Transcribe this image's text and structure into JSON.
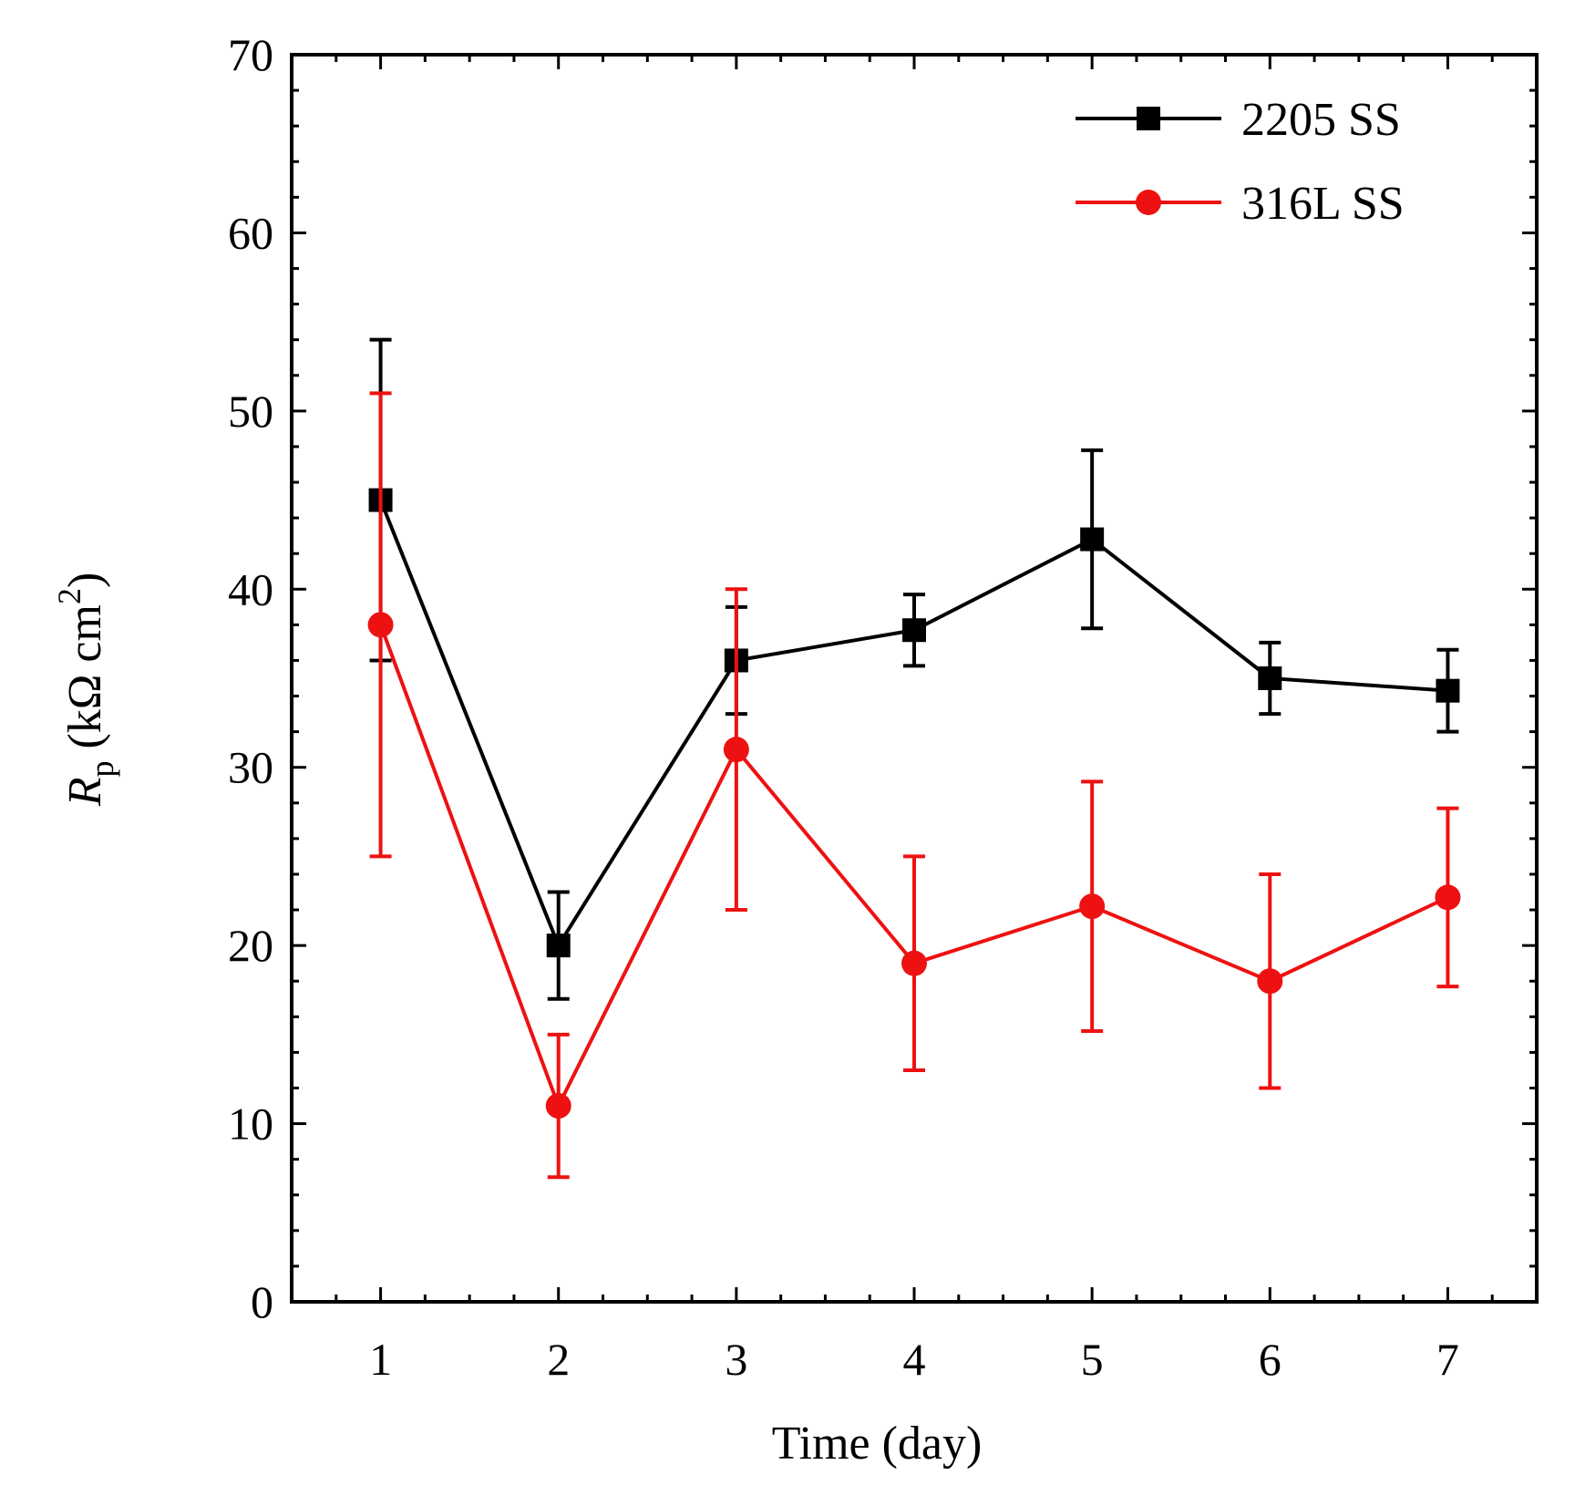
{
  "chart_data": {
    "type": "line",
    "title": "",
    "xlabel": "Time (day)",
    "ylabel": {
      "symbol": "R",
      "subscript": "p",
      "unit_prefix": " (kΩ cm",
      "unit_power": "2",
      "unit_suffix": ")"
    },
    "x": [
      1,
      2,
      3,
      4,
      5,
      6,
      7
    ],
    "xlim": [
      0.5,
      7.5
    ],
    "ylim": [
      0,
      70
    ],
    "x_ticks": [
      "1",
      "2",
      "3",
      "4",
      "5",
      "6",
      "7"
    ],
    "y_ticks": [
      "0",
      "10",
      "20",
      "30",
      "40",
      "50",
      "60",
      "70"
    ],
    "grid": false,
    "legend_position": "top-right",
    "series": [
      {
        "name": "2205 SS",
        "color": "#000000",
        "marker": "square",
        "values": [
          45,
          20,
          36,
          37.7,
          42.8,
          35,
          34.3
        ],
        "errors": [
          9,
          3,
          3,
          2,
          5,
          2,
          2.3
        ]
      },
      {
        "name": "316L SS",
        "color": "#ee1111",
        "marker": "circle",
        "values": [
          38,
          11,
          31,
          19,
          22.2,
          18,
          22.7
        ],
        "errors": [
          13,
          4,
          9,
          6,
          7,
          6,
          5
        ]
      }
    ]
  }
}
